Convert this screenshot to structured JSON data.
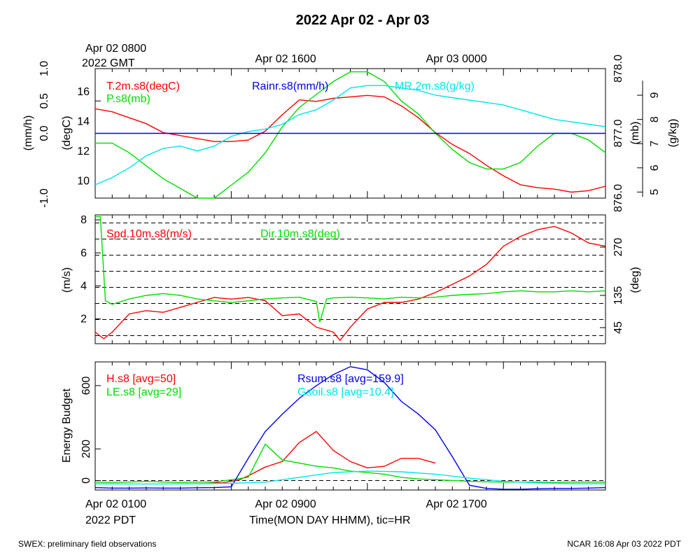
{
  "title": "2022 Apr 02 - Apr 03",
  "top_time_labels": {
    "gmt_first": "Apr 02 0800",
    "gmt_year": "2022 GMT",
    "gmt_mid": "Apr 02 1600",
    "gmt_last": "Apr 03 0000"
  },
  "bottom_time_labels": {
    "pdt_first": "Apr 02 0100",
    "pdt_year": "2022 PDT",
    "pdt_mid": "Apr 02 0900",
    "pdt_last": "Apr 02 1700"
  },
  "xlabel": "Time(MON DAY HHMM), tic=HR",
  "footer_left": "SWEX: preliminary field observations",
  "footer_right": "NCAR 16:08 Apr 03 2022 PDT",
  "colors": {
    "red": "#ff0000",
    "green": "#00dd00",
    "blue": "#0000ee",
    "cyan": "#00e5ee",
    "black": "#000000"
  },
  "chart_data": [
    {
      "type": "line",
      "panel": "state",
      "x_range_hours_pdt": [
        0,
        30
      ],
      "legend": {
        "temp": "T.2m.s8(degC)",
        "pres": "P.s8(mb)",
        "rain": "Rainr.s8(mm/h)",
        "mr": "MR.2m.s8(g/kg)"
      },
      "axes": {
        "rain": {
          "label": "(mm/h)",
          "ylim": [
            -1.0,
            1.0
          ],
          "ticks": [
            "-1.0",
            "0.0",
            "0.5",
            "1.0"
          ],
          "tick_values": [
            -1.0,
            0.0,
            0.5,
            1.0
          ]
        },
        "temp": {
          "label": "(degC)",
          "ylim": [
            8.8,
            17.5
          ],
          "ticks": [
            "10",
            "12",
            "14",
            "16"
          ],
          "tick_values": [
            10,
            12,
            14,
            16
          ]
        },
        "pres": {
          "label": "(mb)",
          "ylim": [
            876.0,
            878.0
          ],
          "ticks": [
            "876.0",
            "877.0",
            "878.0"
          ],
          "tick_values": [
            876.0,
            877.0,
            878.0
          ]
        },
        "mr": {
          "label": "(g/kg)",
          "ylim": [
            4.75,
            10.1
          ],
          "ticks": [
            "5",
            "6",
            "7",
            "8",
            "9"
          ],
          "tick_values": [
            5,
            6,
            7,
            8,
            9
          ]
        }
      },
      "series": [
        {
          "key": "temp",
          "color": "red",
          "x": [
            0,
            1,
            2,
            3,
            4,
            5,
            6,
            7,
            8,
            9,
            10,
            11,
            12,
            13,
            14,
            15,
            16,
            17,
            18,
            19,
            20,
            21,
            22,
            23,
            24,
            25,
            26,
            27,
            28,
            29,
            30
          ],
          "y": [
            14.8,
            14.6,
            14.2,
            13.8,
            13.2,
            13.0,
            12.8,
            12.6,
            12.6,
            12.7,
            13.3,
            14.4,
            15.4,
            15.3,
            15.5,
            15.6,
            15.7,
            15.6,
            15.0,
            14.2,
            13.2,
            12.4,
            11.8,
            11.0,
            10.3,
            9.7,
            9.5,
            9.4,
            9.2,
            9.3,
            9.6
          ]
        },
        {
          "key": "pres",
          "color": "green",
          "x": [
            0,
            1,
            2,
            3,
            4,
            5,
            6,
            7,
            8,
            9,
            10,
            11,
            12,
            13,
            14,
            15,
            16,
            17,
            18,
            19,
            20,
            21,
            22,
            23,
            24,
            25,
            26,
            27,
            28,
            29,
            30
          ],
          "y": [
            876.85,
            876.85,
            876.7,
            876.5,
            876.3,
            876.15,
            876.0,
            876.0,
            876.2,
            876.4,
            876.7,
            877.1,
            877.4,
            877.6,
            877.8,
            877.95,
            877.95,
            877.8,
            877.5,
            877.3,
            877.0,
            876.75,
            876.55,
            876.45,
            876.45,
            876.55,
            876.8,
            877.0,
            877.0,
            876.9,
            876.7
          ]
        },
        {
          "key": "mr",
          "color": "cyan",
          "x": [
            0,
            1,
            2,
            3,
            4,
            5,
            6,
            7,
            8,
            9,
            10,
            11,
            12,
            13,
            14,
            15,
            16,
            17,
            18,
            19,
            20,
            21,
            22,
            23,
            24,
            25,
            26,
            27,
            28,
            29,
            30
          ],
          "y": [
            5.3,
            5.6,
            6.0,
            6.5,
            6.8,
            6.9,
            6.7,
            6.9,
            7.3,
            7.5,
            7.6,
            7.8,
            8.2,
            8.4,
            8.8,
            9.3,
            9.4,
            9.4,
            9.3,
            9.2,
            9.0,
            8.9,
            8.8,
            8.7,
            8.6,
            8.4,
            8.2,
            8.0,
            7.9,
            7.8,
            7.7
          ]
        },
        {
          "key": "rain",
          "color": "blue",
          "x": [
            0,
            30
          ],
          "y": [
            0.0,
            0.0
          ]
        }
      ],
      "reference_lines": [
        {
          "axis": "rain",
          "value": 0.0
        }
      ]
    },
    {
      "type": "line",
      "panel": "wind",
      "x_range_hours_pdt": [
        0,
        30
      ],
      "legend": {
        "spd": "Spd.10m.s8(m/s)",
        "dir": "Dir.10m.s8(deg)"
      },
      "axes": {
        "spd": {
          "label": "(m/s)",
          "ylim": [
            0.5,
            8.3
          ],
          "ticks": [
            "2",
            "4",
            "6",
            "8"
          ],
          "tick_values": [
            2,
            4,
            6,
            8
          ]
        },
        "dir": {
          "label": "(deg)",
          "ylim": [
            0,
            360
          ],
          "ticks": [
            "45",
            "135",
            "270"
          ],
          "tick_values": [
            45,
            135,
            270
          ]
        }
      },
      "series": [
        {
          "key": "spd",
          "color": "red",
          "x": [
            0,
            0.5,
            1,
            2,
            3,
            4,
            5,
            6,
            7,
            8,
            9,
            10,
            11,
            12,
            13,
            14,
            14.4,
            15,
            16,
            17,
            18,
            19,
            20,
            21,
            22,
            23,
            24,
            25,
            26,
            27,
            28,
            29,
            30
          ],
          "y": [
            1.2,
            0.8,
            1.2,
            2.3,
            2.5,
            2.4,
            2.7,
            3.0,
            3.3,
            3.2,
            3.3,
            3.1,
            2.2,
            2.3,
            1.5,
            1.2,
            0.7,
            1.5,
            2.6,
            3.0,
            3.0,
            3.2,
            3.6,
            4.1,
            4.6,
            5.3,
            6.4,
            7.0,
            7.4,
            7.6,
            7.2,
            6.6,
            6.4
          ]
        },
        {
          "key": "dir",
          "color": "green",
          "x": [
            0,
            0.3,
            0.6,
            1,
            2,
            3,
            4,
            5,
            6,
            7,
            8,
            9,
            10,
            11,
            12,
            13,
            13.2,
            13.6,
            14,
            15,
            16,
            17,
            18,
            19,
            20,
            21,
            22,
            23,
            24,
            25,
            26,
            27,
            28,
            29,
            30
          ],
          "y": [
            355,
            355,
            120,
            110,
            125,
            135,
            140,
            135,
            125,
            120,
            115,
            120,
            125,
            128,
            130,
            118,
            60,
            125,
            128,
            130,
            128,
            125,
            130,
            128,
            130,
            135,
            138,
            140,
            145,
            148,
            145,
            145,
            148,
            145,
            148
          ]
        }
      ],
      "reference_lines_deg": [
        22.5,
        67.5,
        112.5,
        157.5,
        202.5,
        247.5,
        292.5,
        337.5
      ]
    },
    {
      "type": "line",
      "panel": "energy",
      "x_range_hours_pdt": [
        0,
        30
      ],
      "ylabel": "Energy Budget",
      "ylim": [
        -60,
        750
      ],
      "ticks": [
        "0",
        "200",
        "600"
      ],
      "tick_values": [
        0,
        200,
        600
      ],
      "legend": {
        "h": "H.s8 [avg=50]",
        "le": "LE.s8 [avg=29]",
        "rsum": "Rsum.s8 [avg=159.9]",
        "gsoil": "Gsoil.s8 [avg=10.4]"
      },
      "series": [
        {
          "key": "h",
          "color": "red",
          "x": [
            6.5,
            7.5,
            8.5,
            9,
            10,
            11,
            12,
            13,
            14,
            15,
            16,
            17,
            18,
            19,
            20
          ],
          "y": [
            -10,
            -15,
            5,
            30,
            85,
            120,
            240,
            310,
            190,
            120,
            80,
            90,
            140,
            140,
            110
          ]
        },
        {
          "key": "le",
          "color": "green",
          "x": [
            0,
            1,
            2,
            3,
            4,
            5,
            6,
            7,
            8,
            9,
            10,
            11,
            12,
            13,
            14,
            15,
            16,
            17,
            18,
            19,
            20,
            21,
            22,
            23,
            24,
            25,
            26,
            27,
            28,
            29,
            30
          ],
          "y": [
            -10,
            -12,
            -10,
            -5,
            -10,
            -12,
            -10,
            -10,
            5,
            20,
            230,
            130,
            110,
            90,
            80,
            60,
            50,
            40,
            20,
            10,
            5,
            0,
            -5,
            -8,
            -10,
            -10,
            -10,
            -12,
            -10,
            -10,
            -10
          ]
        },
        {
          "key": "rsum",
          "color": "blue",
          "x": [
            0,
            1,
            2,
            3,
            4,
            5,
            6,
            7,
            8,
            9,
            10,
            11,
            12,
            13,
            14,
            15,
            16,
            17,
            18,
            19,
            20,
            21,
            22,
            23,
            24,
            25,
            26,
            27,
            28,
            29,
            30
          ],
          "y": [
            -45,
            -48,
            -48,
            -47,
            -48,
            -48,
            -46,
            -45,
            -40,
            140,
            310,
            420,
            520,
            600,
            670,
            720,
            700,
            620,
            500,
            420,
            320,
            150,
            -30,
            -50,
            -55,
            -55,
            -52,
            -50,
            -50,
            -48,
            -45
          ]
        },
        {
          "key": "gsoil",
          "color": "cyan",
          "x": [
            0,
            2,
            4,
            6,
            8,
            10,
            12,
            14,
            16,
            18,
            20,
            22,
            24,
            26,
            28,
            30
          ],
          "y": [
            -20,
            -22,
            -22,
            -20,
            -18,
            -10,
            20,
            50,
            60,
            55,
            40,
            15,
            -5,
            -15,
            -20,
            -20
          ]
        }
      ],
      "reference_lines": [
        {
          "value": 0
        }
      ]
    }
  ]
}
